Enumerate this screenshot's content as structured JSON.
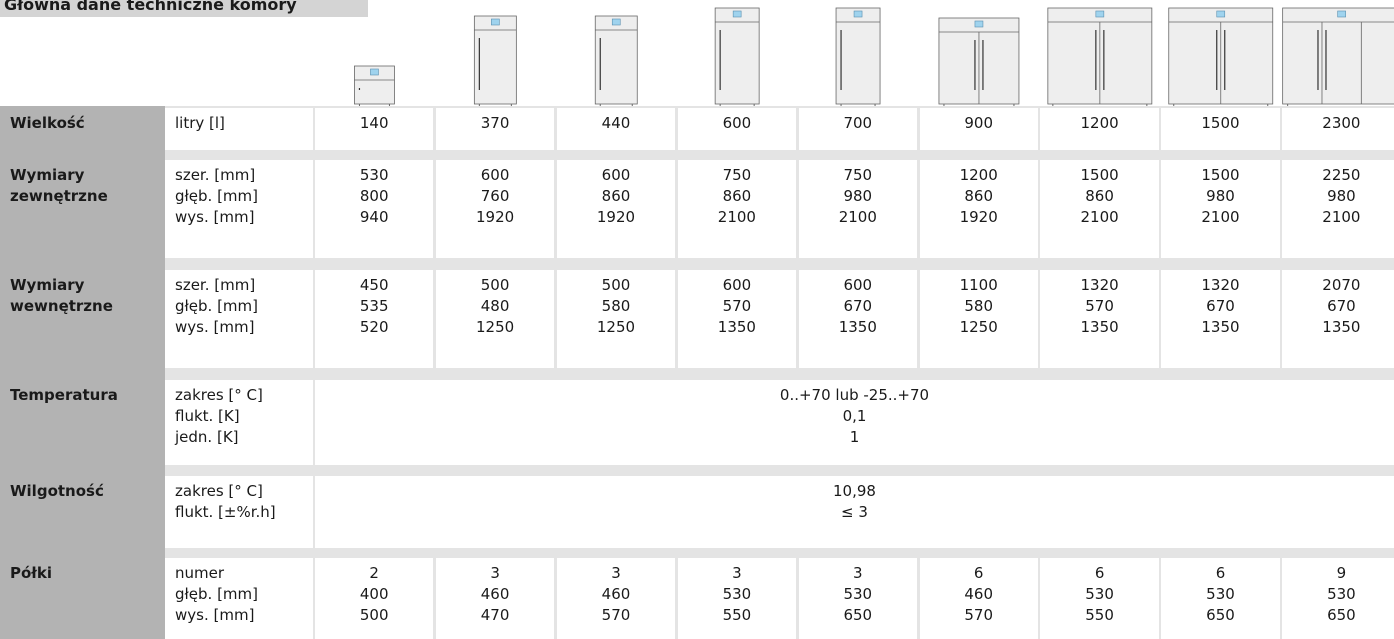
{
  "title": "Główna dane techniczne komory",
  "rows": [
    {
      "label": "Wielkość",
      "units": [
        "litry [l]"
      ],
      "columns": [
        [
          "140"
        ],
        [
          "370"
        ],
        [
          "440"
        ],
        [
          "600"
        ],
        [
          "700"
        ],
        [
          "900"
        ],
        [
          "1200"
        ],
        [
          "1500"
        ],
        [
          "2300"
        ]
      ]
    },
    {
      "label": "Wymiary zewnętrzne",
      "units": [
        "szer. [mm]",
        "głęb. [mm]",
        "wys. [mm]"
      ],
      "columns": [
        [
          "530",
          "800",
          "940"
        ],
        [
          "600",
          "760",
          "1920"
        ],
        [
          "600",
          "860",
          "1920"
        ],
        [
          "750",
          "860",
          "2100"
        ],
        [
          "750",
          "980",
          "2100"
        ],
        [
          "1200",
          "860",
          "1920"
        ],
        [
          "1500",
          "860",
          "2100"
        ],
        [
          "1500",
          "980",
          "2100"
        ],
        [
          "2250",
          "980",
          "2100"
        ]
      ]
    },
    {
      "label": "Wymiary wewnętrzne",
      "units": [
        "szer. [mm]",
        "głęb. [mm]",
        "wys. [mm]"
      ],
      "columns": [
        [
          "450",
          "535",
          "520"
        ],
        [
          "500",
          "480",
          "1250"
        ],
        [
          "500",
          "580",
          "1250"
        ],
        [
          "600",
          "570",
          "1350"
        ],
        [
          "600",
          "670",
          "1350"
        ],
        [
          "1100",
          "580",
          "1250"
        ],
        [
          "1320",
          "570",
          "1350"
        ],
        [
          "1320",
          "670",
          "1350"
        ],
        [
          "2070",
          "670",
          "1350"
        ]
      ]
    },
    {
      "label": "Temperatura",
      "units": [
        "zakres [° C]",
        "flukt. [K]",
        "jedn. [K]"
      ],
      "merged": [
        "0..+70 lub -25..+70",
        "0,1",
        "1"
      ]
    },
    {
      "label": "Wilgotność",
      "units": [
        "zakres [° C]",
        "flukt. [±%r.h]"
      ],
      "merged": [
        "10,98",
        "≤ 3"
      ]
    },
    {
      "label": "Półki",
      "units": [
        "numer",
        "głęb. [mm]",
        "wys. [mm]"
      ],
      "columns": [
        [
          "2",
          "400",
          "500"
        ],
        [
          "3",
          "460",
          "470"
        ],
        [
          "3",
          "460",
          "570"
        ],
        [
          "3",
          "530",
          "550"
        ],
        [
          "3",
          "530",
          "650"
        ],
        [
          "6",
          "460",
          "570"
        ],
        [
          "6",
          "530",
          "550"
        ],
        [
          "6",
          "530",
          "650"
        ],
        [
          "9",
          "530",
          "650"
        ]
      ]
    }
  ]
}
